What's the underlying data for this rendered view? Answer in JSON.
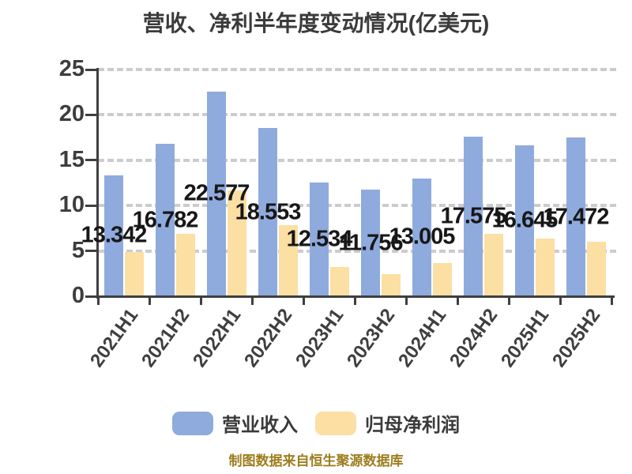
{
  "title": "营收、净利半年度变动情况(亿美元)",
  "footer": "制图数据来自恒生聚源数据库",
  "colors": {
    "revenue": "#8fabdd",
    "profit": "#fcdfa3",
    "axis": "#3f3f3f",
    "grid": "#cccccc",
    "value_label": "#171717",
    "tick_text": "#3d3d3d",
    "title_text": "#3b3b3b",
    "footer_text": "#9d7d1e"
  },
  "chart_data": {
    "type": "bar",
    "title": "营收、净利半年度变动情况(亿美元)",
    "categories": [
      "2021H1",
      "2021H2",
      "2022H1",
      "2022H2",
      "2023H1",
      "2023H2",
      "2024H1",
      "2024H2",
      "2025H1",
      "2025H2"
    ],
    "series": [
      {
        "name": "营业收入",
        "color_key": "revenue",
        "values": [
          13.342,
          16.782,
          22.577,
          18.553,
          12.534,
          11.756,
          13.005,
          17.575,
          16.645,
          17.472
        ],
        "labels": [
          "13.342",
          "16.782",
          "22.577",
          "18.553",
          "12.534",
          "11.756",
          "13.005",
          "17.575",
          "16.645",
          "17.472"
        ]
      },
      {
        "name": "归母净利润",
        "color_key": "profit",
        "values": [
          4.9,
          6.9,
          11.7,
          7.8,
          3.2,
          2.4,
          3.7,
          6.9,
          6.4,
          6.0
        ],
        "labels": []
      }
    ],
    "xlabel": "",
    "ylabel": "",
    "ylim": [
      0,
      25
    ],
    "ytick_step": 5,
    "yticks": [
      "0",
      "5",
      "10",
      "15",
      "20",
      "25"
    ],
    "grid": "dashed-horizontal",
    "legend_position": "bottom"
  },
  "legend": {
    "items": [
      {
        "label": "营业收入"
      },
      {
        "label": "归母净利润"
      }
    ]
  }
}
